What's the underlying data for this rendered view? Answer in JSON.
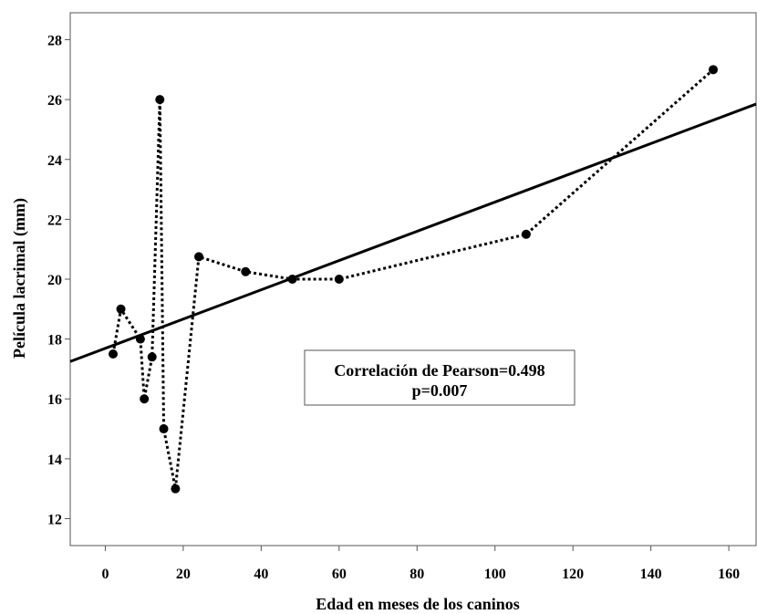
{
  "chart_data": {
    "type": "scatter",
    "xlabel": "Edad en meses de los caninos",
    "ylabel": "Película lacrimal (mm)",
    "xlim": [
      -9,
      167
    ],
    "ylim": [
      11.1,
      28.9
    ],
    "xticks": [
      0,
      20,
      40,
      60,
      80,
      100,
      120,
      140,
      160
    ],
    "yticks": [
      12,
      14,
      16,
      18,
      20,
      22,
      24,
      26,
      28
    ],
    "grid": false,
    "series": [
      {
        "style": "dotted-line-with-markers",
        "color": "#000000",
        "points": [
          {
            "x": 2,
            "y": 17.5
          },
          {
            "x": 4,
            "y": 19
          },
          {
            "x": 9,
            "y": 18
          },
          {
            "x": 10,
            "y": 16
          },
          {
            "x": 12,
            "y": 17.4
          },
          {
            "x": 14,
            "y": 26
          },
          {
            "x": 15,
            "y": 15
          },
          {
            "x": 18,
            "y": 13
          },
          {
            "x": 24,
            "y": 20.75
          },
          {
            "x": 36,
            "y": 20.25
          },
          {
            "x": 48,
            "y": 20
          },
          {
            "x": 60,
            "y": 20
          },
          {
            "x": 108,
            "y": 21.5
          },
          {
            "x": 156,
            "y": 27
          }
        ]
      }
    ],
    "fit_line": {
      "style": "solid",
      "color": "#000000",
      "points": [
        {
          "x": -9,
          "y": 17.25
        },
        {
          "x": 167,
          "y": 25.85
        }
      ]
    },
    "annotation": {
      "lines": [
        "Correlación de Pearson=0.498",
        "p=0.007"
      ]
    }
  }
}
